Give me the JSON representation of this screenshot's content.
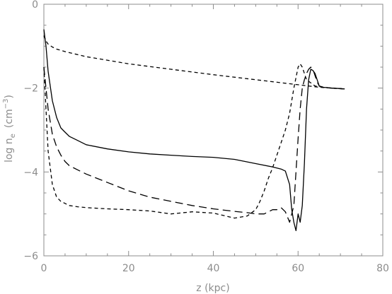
{
  "chart_data": {
    "type": "line",
    "title": "",
    "xlabel": "z (kpc)",
    "ylabel_main": "log n",
    "ylabel_sub": "e",
    "ylabel_unit_open": "(cm",
    "ylabel_unit_exp": "−3",
    "ylabel_unit_close": ")",
    "xlim": [
      0,
      80
    ],
    "ylim": [
      -6,
      0
    ],
    "x_ticks": [
      0,
      20,
      40,
      60,
      80
    ],
    "x_tick_labels": [
      "0",
      "20",
      "40",
      "60",
      "80"
    ],
    "y_ticks": [
      0,
      -2,
      -4,
      -6
    ],
    "y_tick_labels": [
      "0",
      "−2",
      "−4",
      "−6"
    ],
    "grid": false,
    "legend": "none",
    "axis_color": "#8c8c8c",
    "line_color": "#000000",
    "series": [
      {
        "style": "solid",
        "x": [
          0,
          0.5,
          1,
          2,
          3,
          4,
          5,
          6,
          8,
          10,
          15,
          20,
          25,
          30,
          35,
          40,
          45,
          50,
          54,
          56,
          57,
          58,
          58.5,
          59,
          59.5,
          60,
          60.5,
          61,
          61.5,
          62,
          62.5,
          63,
          63.5,
          64,
          64.5,
          65,
          66,
          67,
          68,
          70,
          71
        ],
        "y": [
          -0.6,
          -1.0,
          -1.6,
          -2.3,
          -2.7,
          -2.95,
          -3.05,
          -3.15,
          -3.25,
          -3.35,
          -3.45,
          -3.52,
          -3.57,
          -3.6,
          -3.63,
          -3.65,
          -3.7,
          -3.8,
          -3.88,
          -3.93,
          -3.98,
          -4.3,
          -4.9,
          -5.2,
          -5.4,
          -5.0,
          -5.2,
          -4.8,
          -3.8,
          -2.5,
          -1.8,
          -1.55,
          -1.58,
          -1.65,
          -1.8,
          -1.95,
          -1.98,
          -1.99,
          -2.0,
          -2.01,
          -2.02
        ]
      },
      {
        "style": "long-dash",
        "x": [
          0,
          0.5,
          1,
          2,
          3,
          4,
          5,
          6,
          8,
          10,
          15,
          20,
          25,
          30,
          35,
          40,
          45,
          48,
          50,
          52,
          53,
          54,
          55,
          56,
          57,
          58,
          59,
          59.5,
          60,
          60.5,
          61,
          61.5,
          62,
          62.5,
          63,
          63.5,
          64,
          64.5,
          65,
          66,
          67,
          68,
          70,
          71
        ],
        "y": [
          -1.5,
          -2.0,
          -2.5,
          -3.1,
          -3.4,
          -3.6,
          -3.75,
          -3.85,
          -3.95,
          -4.05,
          -4.25,
          -4.45,
          -4.6,
          -4.7,
          -4.8,
          -4.88,
          -4.94,
          -4.97,
          -5.0,
          -5.0,
          -4.95,
          -4.9,
          -4.9,
          -4.85,
          -4.95,
          -5.2,
          -4.8,
          -4.0,
          -3.2,
          -2.5,
          -2.0,
          -1.8,
          -1.65,
          -1.55,
          -1.5,
          -1.55,
          -1.7,
          -1.85,
          -1.95,
          -1.98,
          -1.99,
          -2.0,
          -2.01,
          -2.02
        ]
      },
      {
        "style": "short-dash",
        "x": [
          0,
          0.5,
          1,
          2,
          3,
          4,
          5,
          6,
          8,
          10,
          15,
          20,
          25,
          30,
          35,
          40,
          45,
          48,
          50,
          51,
          52,
          53,
          54,
          55,
          56,
          57,
          58,
          59,
          60,
          60.5,
          61,
          62,
          64,
          66,
          68,
          71
        ],
        "y": [
          -1.5,
          -2.5,
          -3.5,
          -4.3,
          -4.6,
          -4.7,
          -4.75,
          -4.8,
          -4.83,
          -4.85,
          -4.88,
          -4.9,
          -4.93,
          -5.0,
          -4.95,
          -4.98,
          -5.1,
          -5.05,
          -4.9,
          -4.7,
          -4.45,
          -4.15,
          -3.9,
          -3.6,
          -3.3,
          -3.0,
          -2.6,
          -2.0,
          -1.5,
          -1.42,
          -1.5,
          -1.8,
          -1.95,
          -1.98,
          -2.0,
          -2.02
        ]
      },
      {
        "style": "short-dash",
        "x": [
          0,
          0.5,
          1,
          2,
          3,
          5,
          10,
          20,
          30,
          40,
          50,
          60,
          65,
          71
        ],
        "y": [
          -0.75,
          -0.88,
          -0.95,
          -1.02,
          -1.07,
          -1.13,
          -1.25,
          -1.42,
          -1.55,
          -1.68,
          -1.8,
          -1.92,
          -1.98,
          -2.02
        ]
      }
    ]
  }
}
